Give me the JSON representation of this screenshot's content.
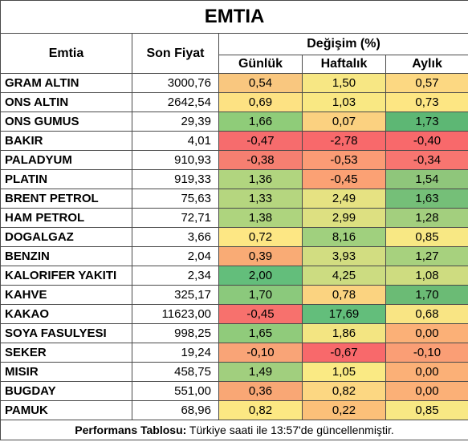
{
  "title": "EMTIA",
  "headers": {
    "commodity": "Emtia",
    "last_price": "Son Fiyat",
    "change_group": "Değişim (%)",
    "daily": "Günlük",
    "weekly": "Haftalık",
    "monthly": "Aylık"
  },
  "rows": [
    {
      "name": "GRAM ALTIN",
      "price": "3000,76",
      "daily": "0,54",
      "weekly": "1,50",
      "monthly": "0,57",
      "colors": [
        "#f9c77f",
        "#f7e784",
        "#fcd882"
      ]
    },
    {
      "name": "ONS ALTIN",
      "price": "2642,54",
      "daily": "0,69",
      "weekly": "1,03",
      "monthly": "0,73",
      "colors": [
        "#fde283",
        "#f9e883",
        "#fde683"
      ]
    },
    {
      "name": "ONS GUMUS",
      "price": "29,39",
      "daily": "1,66",
      "weekly": "0,07",
      "monthly": "1,73",
      "colors": [
        "#8fcc79",
        "#fbd180",
        "#5db774"
      ]
    },
    {
      "name": "BAKIR",
      "price": "4,01",
      "daily": "-0,47",
      "weekly": "-2,78",
      "monthly": "-0,40",
      "colors": [
        "#f66c6d",
        "#f8696b",
        "#f8696b"
      ]
    },
    {
      "name": "PALADYUM",
      "price": "910,93",
      "daily": "-0,38",
      "weekly": "-0,53",
      "monthly": "-0,34",
      "colors": [
        "#f67f71",
        "#fb9b75",
        "#f87570"
      ]
    },
    {
      "name": "PLATIN",
      "price": "919,33",
      "daily": "1,36",
      "weekly": "-0,45",
      "monthly": "1,54",
      "colors": [
        "#b1d57f",
        "#fba174",
        "#8fc67b"
      ]
    },
    {
      "name": "BRENT PETROL",
      "price": "75,63",
      "daily": "1,33",
      "weekly": "2,49",
      "monthly": "1,63",
      "colors": [
        "#b5d67f",
        "#e6e282",
        "#75bf78"
      ]
    },
    {
      "name": "HAM PETROL",
      "price": "72,71",
      "daily": "1,38",
      "weekly": "2,99",
      "monthly": "1,28",
      "colors": [
        "#aed47e",
        "#dde081",
        "#a3cf7e"
      ]
    },
    {
      "name": "DOGALGAZ",
      "price": "3,66",
      "daily": "0,72",
      "weekly": "8,16",
      "monthly": "0,85",
      "colors": [
        "#fde784",
        "#a0d07e",
        "#f8e884"
      ]
    },
    {
      "name": "BENZIN",
      "price": "2,04",
      "daily": "0,39",
      "weekly": "3,93",
      "monthly": "1,27",
      "colors": [
        "#f9ab75",
        "#d2dd81",
        "#a7d17e"
      ]
    },
    {
      "name": "KALORIFER YAKITI",
      "price": "2,34",
      "daily": "2,00",
      "weekly": "4,25",
      "monthly": "1,08",
      "colors": [
        "#63be7b",
        "#ccdc81",
        "#cedc80"
      ]
    },
    {
      "name": "KAHVE",
      "price": "325,17",
      "daily": "1,70",
      "weekly": "0,78",
      "monthly": "1,70",
      "colors": [
        "#8bc97c",
        "#fbd380",
        "#6bbb75"
      ]
    },
    {
      "name": "KAKAO",
      "price": "11623,00",
      "daily": "-0,45",
      "weekly": "17,69",
      "monthly": "0,68",
      "colors": [
        "#f7716d",
        "#63be7b",
        "#f9e584"
      ]
    },
    {
      "name": "SOYA FASULYESI",
      "price": "998,25",
      "daily": "1,65",
      "weekly": "1,86",
      "monthly": "0,00",
      "colors": [
        "#90cb7b",
        "#f3e582",
        "#fbb077"
      ]
    },
    {
      "name": "SEKER",
      "price": "19,24",
      "daily": "-0,10",
      "weekly": "-0,67",
      "monthly": "-0,10",
      "colors": [
        "#f9a477",
        "#f8696b",
        "#fa9e75"
      ]
    },
    {
      "name": "MISIR",
      "price": "458,75",
      "daily": "1,49",
      "weekly": "1,05",
      "monthly": "0,00",
      "colors": [
        "#a1cf7e",
        "#faea84",
        "#fbb077"
      ]
    },
    {
      "name": "BUGDAY",
      "price": "551,00",
      "daily": "0,36",
      "weekly": "0,82",
      "monthly": "0,00",
      "colors": [
        "#f9a775",
        "#fcd782",
        "#fbb077"
      ]
    },
    {
      "name": "PAMUK",
      "price": "68,96",
      "daily": "0,82",
      "weekly": "0,22",
      "monthly": "0,85",
      "colors": [
        "#fce883",
        "#fbc079",
        "#f8e884"
      ]
    }
  ],
  "footer": {
    "label": "Performans Tablosu:",
    "text": " Türkiye saati ile 13:57'de güncellenmiştir."
  }
}
